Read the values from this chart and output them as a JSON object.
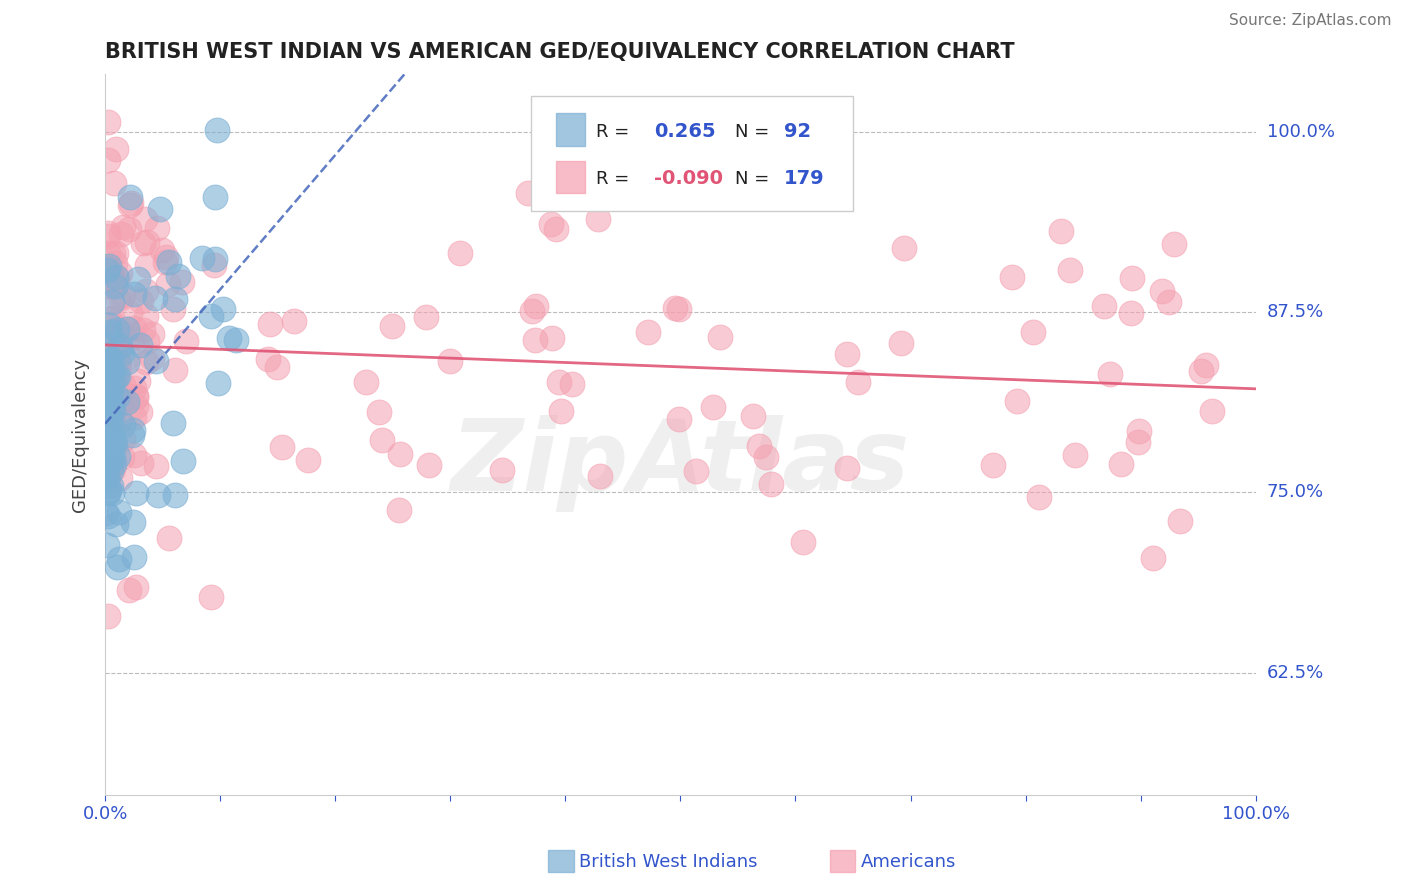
{
  "title": "BRITISH WEST INDIAN VS AMERICAN GED/EQUIVALENCY CORRELATION CHART",
  "source": "Source: ZipAtlas.com",
  "ylabel": "GED/Equivalency",
  "ytick_labels": [
    "62.5%",
    "75.0%",
    "87.5%",
    "100.0%"
  ],
  "ytick_values": [
    0.625,
    0.75,
    0.875,
    1.0
  ],
  "xlim": [
    0.0,
    1.0
  ],
  "ylim": [
    0.54,
    1.04
  ],
  "legend_blue_r": "0.265",
  "legend_blue_n": "92",
  "legend_pink_r": "-0.090",
  "legend_pink_n": "179",
  "blue_color": "#7BAFD4",
  "pink_color": "#F4A0B0",
  "blue_edge_color": "#5588BB",
  "pink_edge_color": "#E06080",
  "blue_trend_color": "#4466BB",
  "pink_trend_color": "#E05575",
  "title_color": "#222222",
  "axis_label_color": "#3355CC",
  "watermark": "ZipAtlas",
  "grid_color": "#BBBBBB",
  "legend_text_color": "#222222",
  "legend_value_color": "#3355CC"
}
